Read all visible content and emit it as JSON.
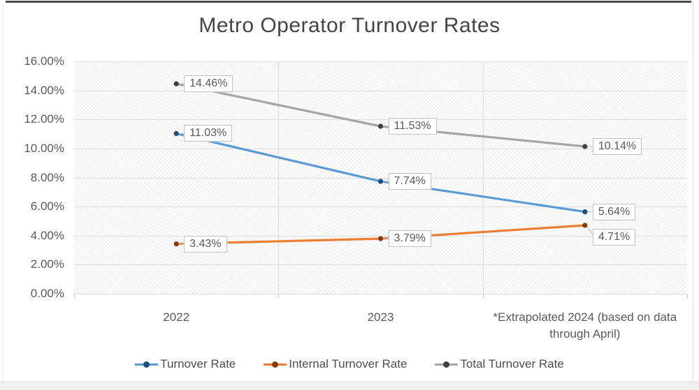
{
  "frame": {
    "top_bar_color": "#4f4f4f",
    "border_color": "#dcdcdc",
    "bottom_strip_color": "#f1f0f0"
  },
  "chart_data": {
    "type": "line",
    "title": "Metro Operator Turnover Rates",
    "categories": [
      "2022",
      "2023",
      "*Extrapolated 2024 (based on data through April)"
    ],
    "series": [
      {
        "name": "Turnover Rate",
        "values": [
          11.03,
          7.74,
          5.64
        ],
        "point_labels": [
          "11.03%",
          "7.74%",
          "5.64%"
        ],
        "line_color": "#5B9BD5",
        "marker_color": "#1F4E79"
      },
      {
        "name": "Internal Turnover Rate",
        "values": [
          3.43,
          3.79,
          4.71
        ],
        "point_labels": [
          "3.43%",
          "3.79%",
          "4.71%"
        ],
        "line_color": "#ED7D31",
        "marker_color": "#843C0C"
      },
      {
        "name": "Total Turnover Rate",
        "values": [
          14.46,
          11.53,
          10.14
        ],
        "point_labels": [
          "14.46%",
          "11.53%",
          "10.14%"
        ],
        "line_color": "#A5A5A5",
        "marker_color": "#3F3F3F"
      }
    ],
    "y_axis": {
      "min": 0,
      "max": 16,
      "step": 2,
      "tick_labels": [
        "16.00%",
        "14.00%",
        "12.00%",
        "10.00%",
        "8.00%",
        "6.00%",
        "4.00%",
        "2.00%",
        "0.00%"
      ]
    },
    "x_axis": {
      "tick_labels": [
        "2022",
        "2023",
        "*Extrapolated 2024 (based on data through April)"
      ]
    },
    "legend": {
      "position": "bottom",
      "entries": [
        "Turnover Rate",
        "Internal Turnover Rate",
        "Total Turnover Rate"
      ]
    },
    "grid": true,
    "plot_bg_pattern": "diagonal-crosshatch",
    "gridline_color": "#dcdcdc",
    "data_label_text_color": "#595959",
    "data_label_border_color": "#bfbfbf"
  }
}
